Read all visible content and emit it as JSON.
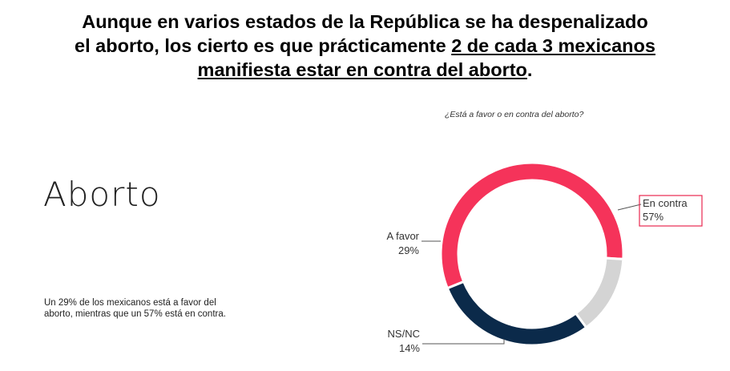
{
  "headline": {
    "line1": "Aunque en varios estados de la República se ha despenalizado",
    "line2_plain": "el aborto, los cierto es que prácticamente ",
    "line2_underlined": "2 de cada 3 mexicanos",
    "line3_underlined": "manifiesta estar en contra del aborto",
    "line3_end": "."
  },
  "section_title": "Aborto",
  "summary": "Un 29% de los mexicanos está a favor del aborto, mientras que un 57% está en contra.",
  "question": "¿Está a favor o en contra del aborto?",
  "chart_data": {
    "type": "pie",
    "style": "donut",
    "question": "¿Está a favor o en contra del aborto?",
    "slices": [
      {
        "label": "En contra",
        "value": 57,
        "display": "57%",
        "color": "#f5335a"
      },
      {
        "label": "NS/NC",
        "value": 14,
        "display": "14%",
        "color": "#d4d4d4"
      },
      {
        "label": "A favor",
        "value": 29,
        "display": "29%",
        "color": "#0b2a4a"
      }
    ],
    "highlight_box_color": "#e8284f",
    "leader_line_color": "#555555"
  }
}
